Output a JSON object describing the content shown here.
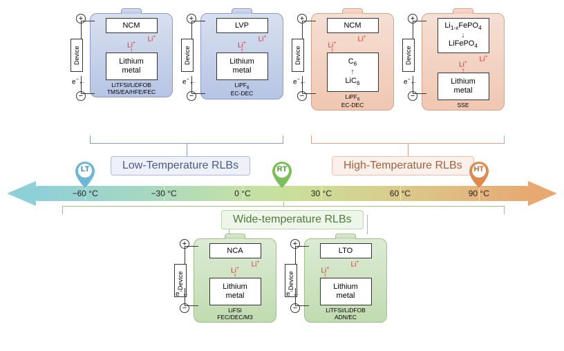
{
  "colors": {
    "lowTempFill": "linear-gradient(180deg,#d8e0ef 0%,#b6c5e4 100%)",
    "lowTempStroke": "#8a9bc4",
    "highTempFill": "linear-gradient(180deg,#f5dfd4 0%,#f0c7b2 100%)",
    "highTempStroke": "#d9a187",
    "wideTempFill": "linear-gradient(180deg,#dcebd4 0%,#c1dbb1 100%)",
    "wideTempStroke": "#9cc088",
    "axisGradient": "linear-gradient(90deg,#8ed0d8 0%,#a7d7c2 22%,#c1e0a8 40%,#c9df9a 52%,#d7cf8e 70%,#e2b87f 88%,#e7a971 100%)",
    "arrowLeft": "#8ed0d8",
    "arrowRight": "#e7a971",
    "ltPin": "#6fb7d6",
    "rtPin": "#7dbf5a",
    "htPin": "#e0894f",
    "lowBandBorder": "#a8b9dd",
    "lowBandBg": "#eef1f9",
    "highBandBorder": "#e8c3b1",
    "highBandBg": "#fbf0ea",
    "wideBandBorder": "#b9d5a9",
    "wideBandBg": "#eef6e9",
    "liColor": "#cc3333"
  },
  "batteries": {
    "topRow": [
      {
        "id": "b1",
        "group": "low",
        "cathode": "NCM",
        "anode": "Lithium metal",
        "electrolyte": "LiTFSI/LiDFOB\nTMS/EA/HFE/FEC"
      },
      {
        "id": "b2",
        "group": "low",
        "cathode": "LVP",
        "anode": "Lithium metal",
        "electrolyte": "LiPF₆\nEC-DEC"
      },
      {
        "id": "b3",
        "group": "high",
        "cathode": "NCM",
        "anode": "C₆\n↑\nLiC₆",
        "anodeIsReaction": true,
        "liSide": "left",
        "electrolyte": "LiPF₆\nEC-DEC"
      },
      {
        "id": "b4",
        "group": "high",
        "cathode": "Li₁₋ₓFePO₄\n↓\nLiFePO₄",
        "cathodeIsReaction": true,
        "anode": "Lithium metal",
        "electrolyte": "SSE"
      }
    ],
    "bottomRow": [
      {
        "id": "b5",
        "group": "wide",
        "cathode": "NCA",
        "anode": "Lithium metal",
        "electrolyte": "LiFSI\nFEC/DEC/M3"
      },
      {
        "id": "b6",
        "group": "wide",
        "cathode": "LTO",
        "anode": "Lithium metal",
        "liSide": "left",
        "electrolyte": "LiTFSI/LiDFOB\nADN/EC"
      }
    ]
  },
  "labels": {
    "device": "Device",
    "li": "Li⁺",
    "e": "e⁻",
    "lowBand": "Low-Temperature RLBs",
    "highBand": "High-Temperature RLBs",
    "wideBand": "Wide-temperature RLBs",
    "lt": "LT",
    "rt": "RT",
    "ht": "HT"
  },
  "axis": {
    "ticks": [
      {
        "value": "−60 °C",
        "posPct": 10
      },
      {
        "value": "−30 °C",
        "posPct": 26
      },
      {
        "value": "0 °C",
        "posPct": 42
      },
      {
        "value": "30 °C",
        "posPct": 58
      },
      {
        "value": "60 °C",
        "posPct": 74
      },
      {
        "value": "90 °C",
        "posPct": 90
      }
    ],
    "ltPinPct": 10,
    "rtPinPct": 50,
    "htPinPct": 90
  },
  "layout": {
    "topRowLeft": 130,
    "topRowTop": 12,
    "bottomRowLeft": 280,
    "bottomRowTop": 338,
    "batteryGap": 40
  }
}
